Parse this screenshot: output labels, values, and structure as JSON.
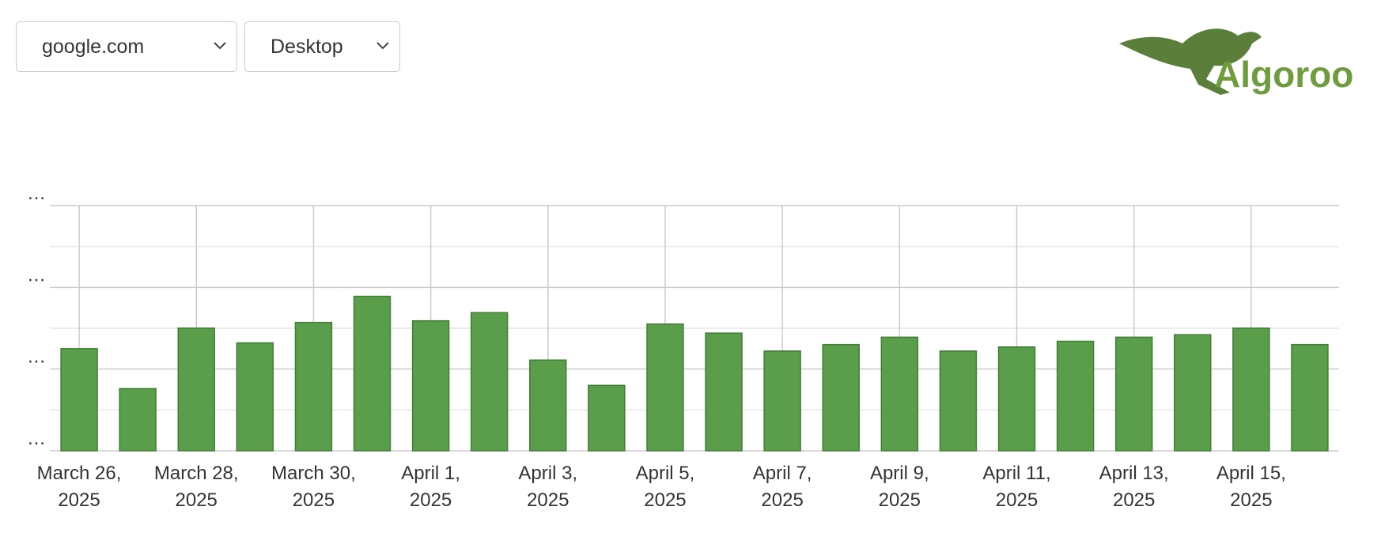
{
  "controls": {
    "site": "google.com",
    "device": "Desktop"
  },
  "logo": {
    "text": "Algoroo"
  },
  "chart_data": {
    "type": "bar",
    "categories": [
      "March 26, 2025",
      null,
      "March 28, 2025",
      null,
      "March 30, 2025",
      null,
      "April 1, 2025",
      null,
      "April 3, 2025",
      null,
      "April 5, 2025",
      null,
      "April 7, 2025",
      null,
      "April 9, 2025",
      null,
      "April 11, 2025",
      null,
      "April 13, 2025",
      null,
      "April 15, 2025",
      null
    ],
    "values": [
      1.25,
      0.76,
      1.5,
      1.32,
      1.57,
      1.89,
      1.59,
      1.69,
      1.11,
      0.8,
      1.55,
      1.44,
      1.22,
      1.3,
      1.39,
      1.22,
      1.27,
      1.34,
      1.39,
      1.42,
      1.5,
      1.3
    ],
    "color": "#5a9e4b",
    "ylim": [
      0,
      3
    ],
    "yticks": [
      {
        "value": 0,
        "label": "…"
      },
      {
        "value": 1,
        "label": "…"
      },
      {
        "value": 2,
        "label": "…"
      },
      {
        "value": 3,
        "label": "…"
      }
    ],
    "minor_yticks": [
      0.5,
      1.5,
      2.5
    ],
    "grid": true
  }
}
